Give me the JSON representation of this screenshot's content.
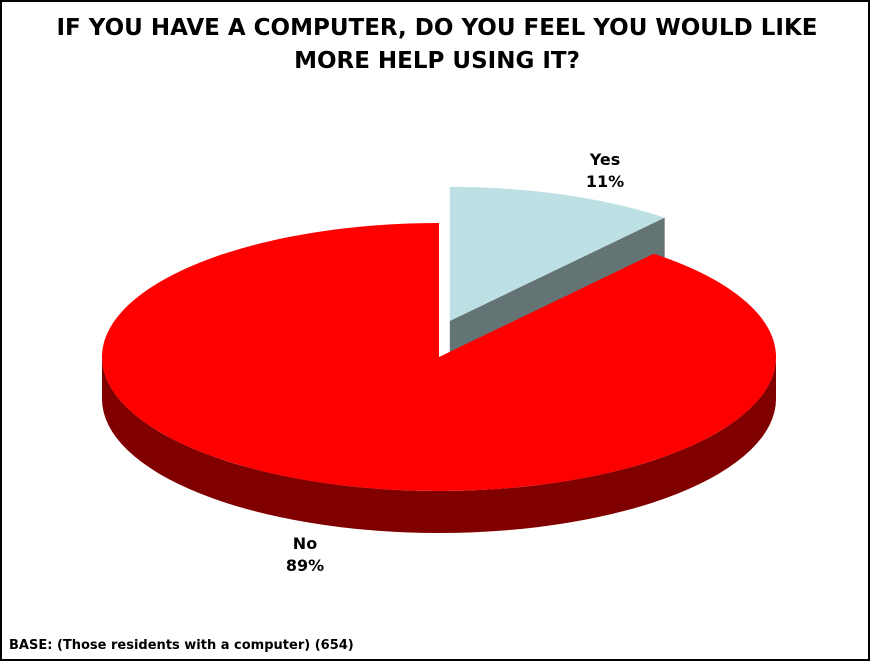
{
  "chart_data": {
    "type": "pie",
    "title": "IF YOU HAVE A COMPUTER, DO YOU FEEL YOU WOULD LIKE MORE HELP USING IT?",
    "slices": [
      {
        "label": "Yes",
        "value": 11,
        "value_label": "11%",
        "color": "#bde0e4",
        "side_color": "#647373",
        "exploded": true
      },
      {
        "label": "No",
        "value": 89,
        "value_label": "89%",
        "color": "#ff0000",
        "side_color": "#800000",
        "exploded": false
      }
    ],
    "style": "3d-exploded"
  },
  "footnote": "BASE: (Those residents with a computer) (654)"
}
